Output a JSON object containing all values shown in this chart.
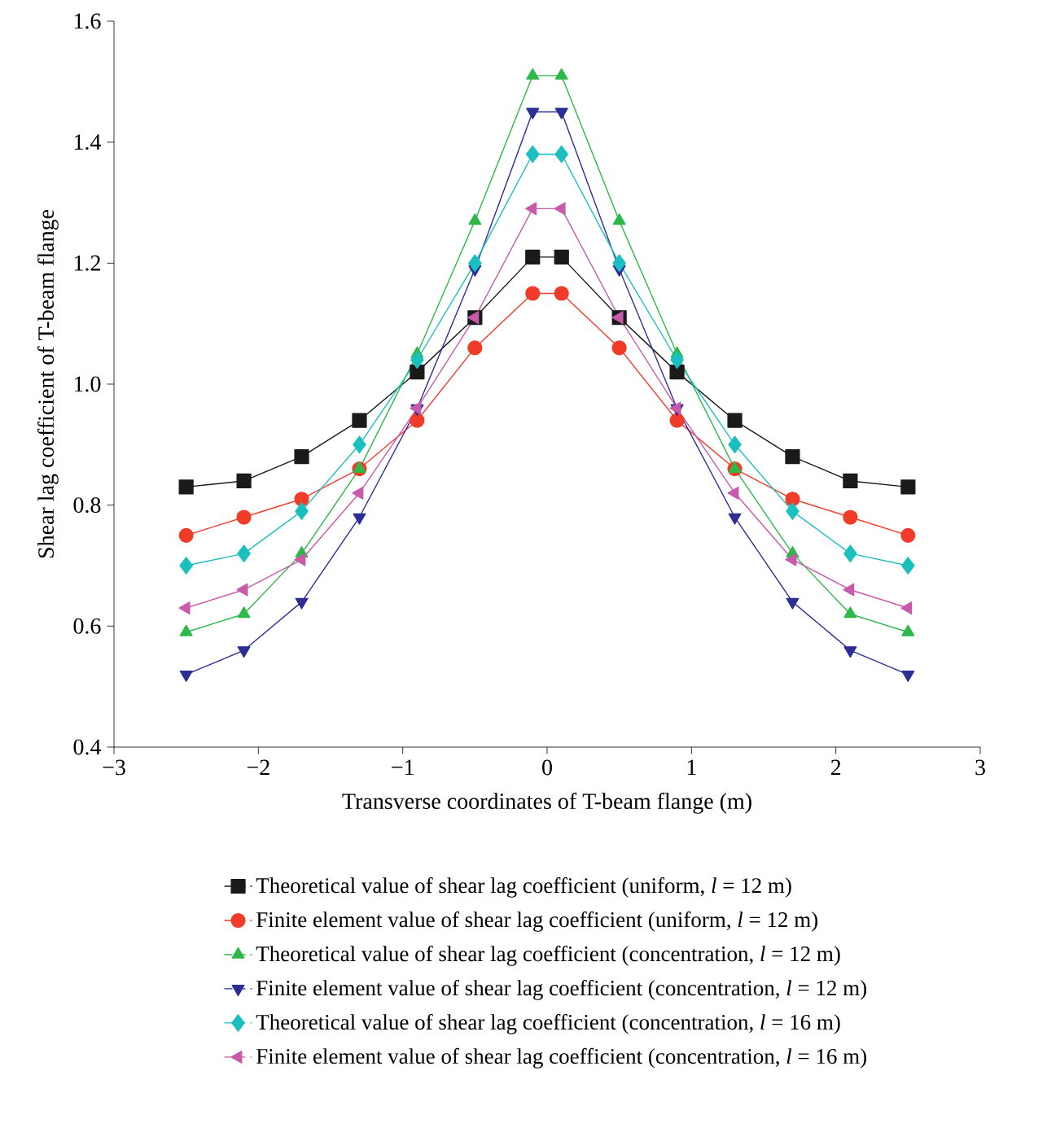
{
  "chart_data": {
    "type": "line",
    "xlabel": "Transverse coordinates of T-beam flange (m)",
    "ylabel": "Shear lag coefficient of T-beam flange",
    "x": [
      -2.5,
      -2.1,
      -1.7,
      -1.3,
      -0.9,
      -0.5,
      -0.1,
      0.1,
      0.5,
      0.9,
      1.3,
      1.7,
      2.1,
      2.5
    ],
    "xlim": [
      -3,
      3
    ],
    "xticks": [
      {
        "value": -3,
        "label": "−3"
      },
      {
        "value": -2,
        "label": "−2"
      },
      {
        "value": -1,
        "label": "−1"
      },
      {
        "value": 0,
        "label": "0"
      },
      {
        "value": 1,
        "label": "1"
      },
      {
        "value": 2,
        "label": "2"
      },
      {
        "value": 3,
        "label": "3"
      }
    ],
    "ylim": [
      0.4,
      1.6
    ],
    "yticks": [
      {
        "value": 0.4,
        "label": "0.4"
      },
      {
        "value": 0.6,
        "label": "0.6"
      },
      {
        "value": 0.8,
        "label": "0.8"
      },
      {
        "value": 1.0,
        "label": "1.0"
      },
      {
        "value": 1.2,
        "label": "1.2"
      },
      {
        "value": 1.4,
        "label": "1.4"
      },
      {
        "value": 1.6,
        "label": "1.6"
      }
    ],
    "legend": "bottom",
    "series": [
      {
        "name": "Theoretical value of shear lag coefficient (uniform, *l* = 12 m)",
        "color": "#1a1a1a",
        "marker": "square",
        "values": [
          0.83,
          0.84,
          0.88,
          0.94,
          1.02,
          1.11,
          1.21,
          1.21,
          1.11,
          1.02,
          0.94,
          0.88,
          0.84,
          0.83
        ]
      },
      {
        "name": "Finite element value of shear lag coefficient (uniform, *l* = 12 m)",
        "color": "#f03c28",
        "marker": "circle",
        "values": [
          0.75,
          0.78,
          0.81,
          0.86,
          0.94,
          1.06,
          1.15,
          1.15,
          1.06,
          0.94,
          0.86,
          0.81,
          0.78,
          0.75
        ]
      },
      {
        "name": "Theoretical value of shear lag coefficient (concentration, *l* = 12 m)",
        "color": "#2db84a",
        "marker": "triangle",
        "values": [
          0.59,
          0.62,
          0.72,
          0.86,
          1.05,
          1.27,
          1.51,
          1.51,
          1.27,
          1.05,
          0.86,
          0.72,
          0.62,
          0.59
        ]
      },
      {
        "name": "Finite element value of shear lag coefficient (concentration, *l* = 12 m)",
        "color": "#2d2d96",
        "marker": "triangle-down",
        "values": [
          0.52,
          0.56,
          0.64,
          0.78,
          0.96,
          1.19,
          1.45,
          1.45,
          1.19,
          0.96,
          0.78,
          0.64,
          0.56,
          0.52
        ]
      },
      {
        "name": "Theoretical value of shear lag coefficient (concentration, *l* = 16 m)",
        "color": "#1cbfbf",
        "marker": "diamond",
        "values": [
          0.7,
          0.72,
          0.79,
          0.9,
          1.04,
          1.2,
          1.38,
          1.38,
          1.2,
          1.04,
          0.9,
          0.79,
          0.72,
          0.7
        ]
      },
      {
        "name": "Finite element value of shear lag coefficient (concentration, *l* = 16 m)",
        "color": "#c85aaa",
        "marker": "triangle-left",
        "values": [
          0.63,
          0.66,
          0.71,
          0.82,
          0.96,
          1.11,
          1.29,
          1.29,
          1.11,
          0.96,
          0.82,
          0.71,
          0.66,
          0.63
        ]
      }
    ]
  }
}
